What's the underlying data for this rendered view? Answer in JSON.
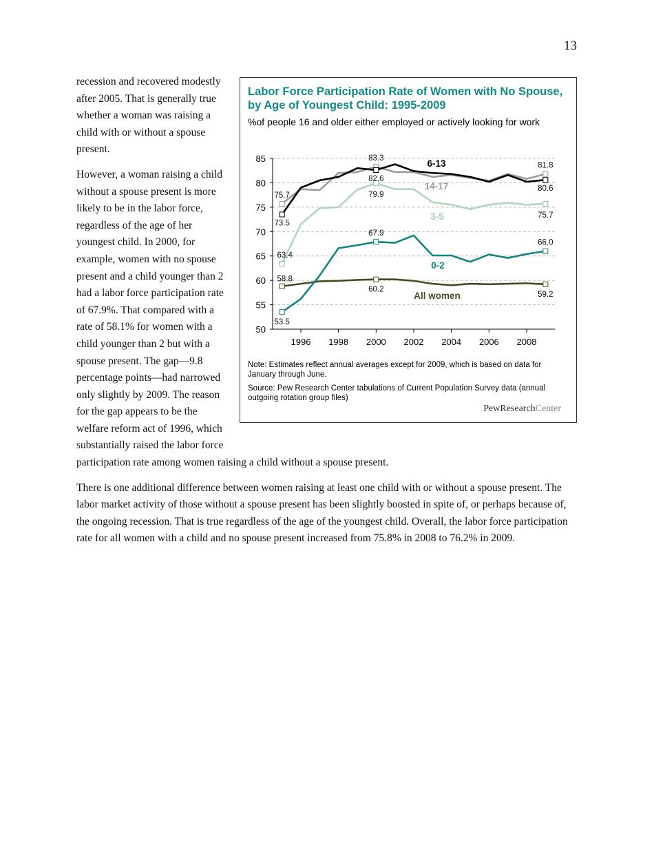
{
  "page_number": "13",
  "paragraphs": [
    "recession and recovered modestly after 2005. That is generally true whether a woman was raising a child with or without a spouse present.",
    "However, a woman raising a child without a spouse present is more likely to be in the labor force, regardless of the age of her youngest child. In 2000, for example, women with no spouse present and a child younger than 2 had a labor force participation rate of 67.9%. That compared with a rate of 58.1% for women with a child younger than 2 but with a spouse present. The gap—9.8 percentage points—had narrowed only slightly by 2009. The reason for the gap appears to be the welfare reform act of 1996, which substantially raised the labor force participation rate among women raising a child without a spouse present.",
    "There is one additional difference between women raising at least one child with or without a spouse present. The labor market activity of those without a spouse present has been slightly boosted in spite of, or perhaps because of, the ongoing recession. That is true regardless of the age of the youngest child. Overall, the labor force participation rate for all women with a child and no spouse present increased from 75.8% in 2008 to 76.2% in 2009."
  ],
  "chart_data": {
    "type": "line",
    "title": "Labor Force Participation Rate of Women with No Spouse, by Age of Youngest Child: 1995-2009",
    "subtitle": "%of people 16 and older either employed or actively looking for work",
    "note": "Note: Estimates reflect annual averages except for 2009, which is based on data for January through June.",
    "source": "Source: Pew Research Center tabulations of Current Population Survey data (annual outgoing rotation group files)",
    "logo": {
      "primary": "PewResearch",
      "secondary": "Center"
    },
    "x": [
      1995,
      1996,
      1997,
      1998,
      1999,
      2000,
      2001,
      2002,
      2003,
      2004,
      2005,
      2006,
      2007,
      2008,
      2009
    ],
    "xlim": [
      1994.5,
      2009.5
    ],
    "xticks": [
      1996,
      1998,
      2000,
      2002,
      2004,
      2006,
      2008
    ],
    "ylim": [
      50,
      85
    ],
    "yticks": [
      50,
      55,
      60,
      65,
      70,
      75,
      80,
      85
    ],
    "grid": true,
    "series": [
      {
        "name": "6-13",
        "color": "#000000",
        "values": [
          73.5,
          79,
          80.5,
          81.2,
          83,
          82.6,
          83.8,
          82.4,
          82,
          81.8,
          81.2,
          80.2,
          81.6,
          80.2,
          80.6
        ],
        "value_labels": [
          "73.5",
          null,
          null,
          null,
          null,
          "82.6",
          null,
          null,
          null,
          null,
          null,
          null,
          null,
          null,
          "80.6"
        ]
      },
      {
        "name": "14-17",
        "color": "#9a9a9a",
        "values": [
          75.7,
          78.7,
          78.5,
          82,
          82.2,
          83.3,
          82.2,
          82.2,
          81.2,
          81.6,
          81,
          80.4,
          81.8,
          80.8,
          81.8
        ],
        "value_labels": [
          "75.7",
          null,
          null,
          null,
          null,
          "83.3",
          null,
          null,
          null,
          null,
          null,
          null,
          null,
          null,
          "81.8"
        ]
      },
      {
        "name": "3-5",
        "color": "#b4d4bf",
        "values": [
          63.4,
          71.5,
          74.8,
          75,
          78.6,
          79.9,
          78.7,
          78.7,
          76,
          75.5,
          74.6,
          75.5,
          75.9,
          75.5,
          75.7
        ],
        "value_labels": [
          "63.4",
          null,
          null,
          null,
          null,
          "79.9",
          null,
          null,
          null,
          null,
          null,
          null,
          null,
          null,
          "75.7"
        ]
      },
      {
        "name": "0-2",
        "color": "#13857f",
        "values": [
          53.5,
          56.2,
          61,
          66.6,
          67.2,
          67.9,
          67.7,
          69.2,
          65.1,
          65.1,
          63.8,
          65.3,
          64.6,
          65.4,
          66
        ],
        "value_labels": [
          "53.5",
          null,
          null,
          null,
          null,
          "67.9",
          null,
          null,
          null,
          null,
          null,
          null,
          null,
          null,
          "66.0"
        ]
      },
      {
        "name": "All women",
        "color": "#4a4a26",
        "values": [
          58.8,
          59.3,
          59.8,
          59.9,
          60.1,
          60.2,
          60.2,
          59.9,
          59.3,
          59,
          59.3,
          59.2,
          59.3,
          59.4,
          59.2
        ],
        "value_labels": [
          "58.8",
          null,
          null,
          null,
          null,
          "60.2",
          null,
          null,
          null,
          null,
          null,
          null,
          null,
          null,
          "59.2"
        ]
      }
    ]
  }
}
